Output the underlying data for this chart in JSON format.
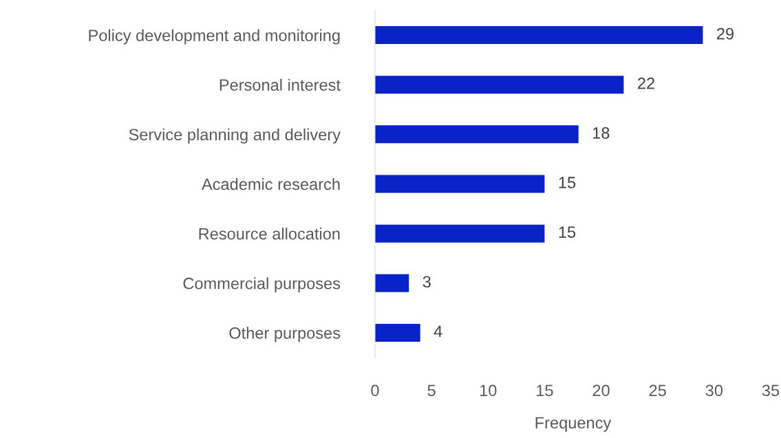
{
  "chart_data": {
    "type": "bar",
    "orientation": "horizontal",
    "xlabel": "Frequency",
    "categories": [
      "Policy development and monitoring",
      "Personal interest",
      "Service planning and delivery",
      "Academic research",
      "Resource allocation",
      "Commercial purposes",
      "Other purposes"
    ],
    "values": [
      29,
      22,
      18,
      15,
      15,
      3,
      4
    ],
    "color": "#0a23c8",
    "xlim": [
      0,
      35
    ],
    "xticks": [
      0,
      5,
      10,
      15,
      20,
      25,
      30,
      35
    ],
    "grid": false,
    "data_labels": true
  }
}
